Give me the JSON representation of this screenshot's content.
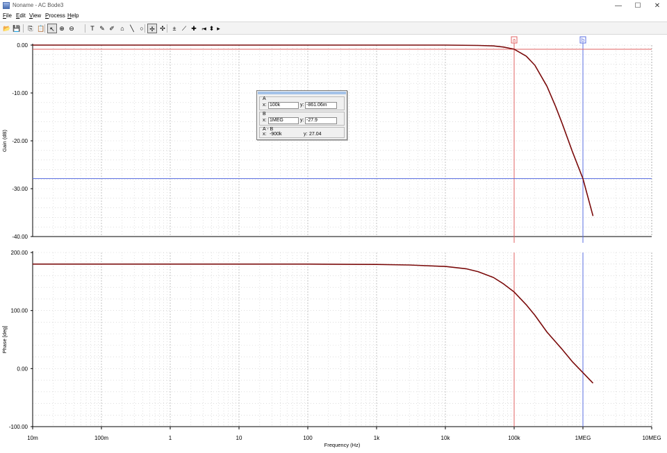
{
  "window": {
    "title": "Noname - AC Bode3",
    "controls": {
      "minimize": "—",
      "maximize": "☐",
      "close": "✕"
    }
  },
  "menu": [
    {
      "underline": "F",
      "rest": "ile"
    },
    {
      "underline": "E",
      "rest": "dit"
    },
    {
      "underline": "V",
      "rest": "iew"
    },
    {
      "underline": "P",
      "rest": "rocess"
    },
    {
      "underline": "H",
      "rest": "elp"
    }
  ],
  "toolbar": [
    {
      "name": "open-icon",
      "glyph": "📂"
    },
    {
      "name": "save-icon",
      "glyph": "💾"
    },
    {
      "name": "copy-icon",
      "glyph": "⎘"
    },
    {
      "name": "paste-icon",
      "glyph": "📋"
    },
    {
      "name": "pointer-icon",
      "glyph": "↖",
      "pressed": true
    },
    {
      "name": "zoom-in-icon",
      "glyph": "⊕"
    },
    {
      "name": "zoom-out-icon",
      "glyph": "⊖"
    },
    {
      "name": "blank-icon",
      "glyph": ""
    },
    {
      "name": "text-icon",
      "glyph": "T"
    },
    {
      "name": "draw-line-icon",
      "glyph": "✎"
    },
    {
      "name": "draw-curve-icon",
      "glyph": "✐"
    },
    {
      "name": "house-icon",
      "glyph": "⌂"
    },
    {
      "name": "line-icon",
      "glyph": "╲"
    },
    {
      "name": "circle-icon",
      "glyph": "○"
    },
    {
      "name": "cursor-a-icon",
      "glyph": "✢",
      "pressed": true
    },
    {
      "name": "cursor-b-icon",
      "glyph": "✣"
    },
    {
      "name": "marker-icon",
      "glyph": "±"
    },
    {
      "name": "slope-icon",
      "glyph": "⟋"
    },
    {
      "name": "probe-icon",
      "glyph": "✚"
    },
    {
      "name": "corner-icon",
      "glyph": "⌐"
    },
    {
      "name": "arrow-left-icon",
      "glyph": "◂"
    },
    {
      "name": "arrow-updown-icon",
      "glyph": "⬍"
    },
    {
      "name": "arrow-right-icon",
      "glyph": "▸"
    }
  ],
  "colors": {
    "trace": "#7a0a0a",
    "cursor_a": "#e06060",
    "cursor_b": "#5a6ee0",
    "grid": "#c8c8c8"
  },
  "cursor_panel": {
    "a_label": "A",
    "a_x": "100k",
    "a_y": "-861.06m",
    "b_label": "B",
    "b_x": "1MEG",
    "b_y": "-27.9",
    "diff_label": "A - B",
    "diff_x": "-900k",
    "diff_y": "27.04",
    "x_prefix": "x:",
    "y_prefix": "y:"
  },
  "chart_data": {
    "type": "line",
    "xlabel": "Frequency (Hz)",
    "xscale": "log",
    "xlim": [
      0.01,
      10000000
    ],
    "xtick_labels": [
      "10m",
      "100m",
      "1",
      "10",
      "100",
      "1k",
      "10k",
      "100k",
      "1MEG",
      "10MEG"
    ],
    "cursors": [
      {
        "label": "a",
        "x": 100000
      },
      {
        "label": "b",
        "x": 1000000
      }
    ],
    "panels": [
      {
        "ylabel": "Gain (dB)",
        "ylim": [
          -40,
          0
        ],
        "ytick_labels": [
          "0.00",
          "-10.00",
          "-20.00",
          "-30.00",
          "-40.00"
        ],
        "yticks": [
          0,
          -10,
          -20,
          -30,
          -40
        ],
        "cursor_levels": [
          -0.861,
          -27.9
        ],
        "series": [
          {
            "x": [
              0.01,
              1000,
              10000,
              30000,
              50000,
              70000,
              100000,
              150000,
              200000,
              300000,
              400000,
              500000,
              700000,
              1000000,
              1400000
            ],
            "y": [
              0,
              0,
              -0.001,
              -0.07,
              -0.18,
              -0.4,
              -0.861,
              -2.3,
              -4.2,
              -8.6,
              -12.8,
              -16.4,
              -22.2,
              -27.9,
              -35.7
            ]
          }
        ]
      },
      {
        "ylabel": "Phase [deg]",
        "ylim": [
          -100,
          200
        ],
        "ytick_labels": [
          "200.00",
          "100.00",
          "0.00",
          "-100.00"
        ],
        "yticks": [
          200,
          100,
          0,
          -100
        ],
        "series": [
          {
            "x": [
              0.01,
              100,
              1000,
              3000,
              10000,
              20000,
              30000,
              50000,
              70000,
              100000,
              150000,
              200000,
              300000,
              500000,
              700000,
              1000000,
              1400000
            ],
            "y": [
              180,
              180,
              179.5,
              178.5,
              176,
              172,
              167,
              157,
              146,
              132,
              110,
              92,
              63,
              33,
              12,
              -7,
              -25
            ]
          }
        ]
      }
    ]
  }
}
